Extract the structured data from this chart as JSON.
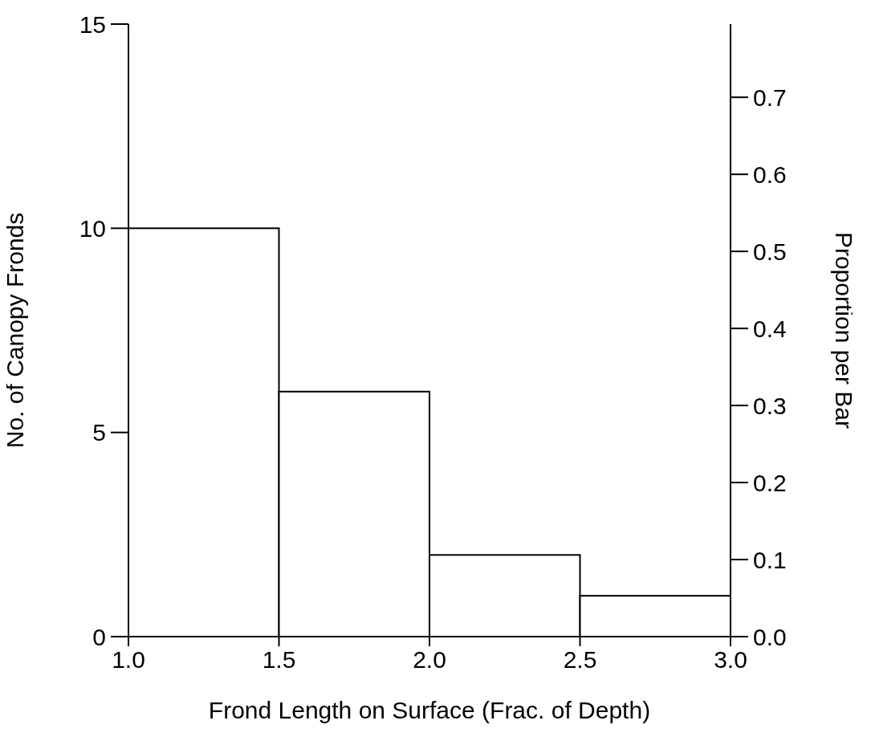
{
  "chart_data": {
    "type": "histogram",
    "bins": [
      1.0,
      1.5,
      2.0,
      2.5,
      3.0
    ],
    "values": [
      10,
      6,
      2,
      1
    ],
    "color": "#ffffff",
    "xlabel": "Frond Length on Surface (Frac. of Depth)",
    "ylabel": "No. of Canopy Fronds",
    "y2label": "Proportion per Bar",
    "xlim": [
      1.0,
      3.0
    ],
    "xticks": [
      {
        "value": 1.0,
        "label": "1.0"
      },
      {
        "value": 1.5,
        "label": "1.5"
      },
      {
        "value": 2.0,
        "label": "2.0"
      },
      {
        "value": 2.5,
        "label": "2.5"
      },
      {
        "value": 3.0,
        "label": "3.0"
      }
    ],
    "ylim": [
      0,
      15
    ],
    "yticks": [
      0,
      5,
      10,
      15
    ],
    "y2lim": [
      0,
      0.795
    ],
    "y2ticks": [
      {
        "value": 0,
        "label": "0.0"
      },
      {
        "value": 0.1,
        "label": "0.1"
      },
      {
        "value": 0.2,
        "label": "0.2"
      },
      {
        "value": 0.3,
        "label": "0.3"
      },
      {
        "value": 0.4,
        "label": "0.4"
      },
      {
        "value": 0.5,
        "label": "0.5"
      },
      {
        "value": 0.6,
        "label": "0.6"
      },
      {
        "value": 0.7,
        "label": "0.7"
      }
    ],
    "grid": false,
    "legend": false
  }
}
